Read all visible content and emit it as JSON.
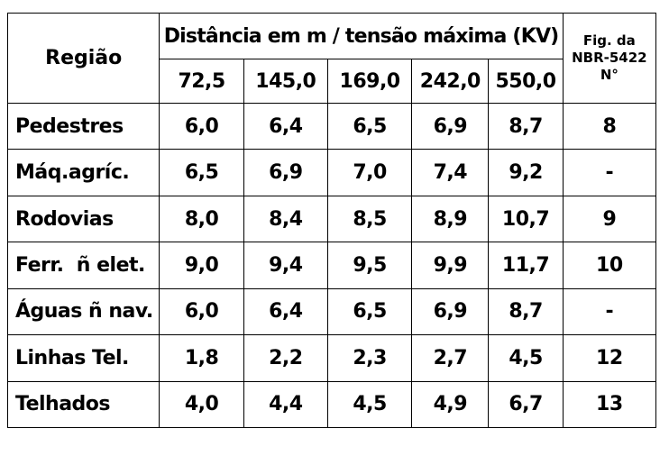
{
  "table": {
    "region_header": "Região",
    "span_header": "Distância em m / tensão máxima (KV)",
    "fig_header": [
      "Fig. da",
      "NBR-5422",
      "N°"
    ],
    "voltages": [
      "72,5",
      "145,0",
      "169,0",
      "242,0",
      "550,0"
    ],
    "rows": [
      {
        "label": "Pedestres",
        "values": [
          "6,0",
          "6,4",
          "6,5",
          "6,9",
          "8,7"
        ],
        "fig": "8"
      },
      {
        "label": "Máq.agríc.",
        "values": [
          "6,5",
          "6,9",
          "7,0",
          "7,4",
          "9,2"
        ],
        "fig": "-"
      },
      {
        "label": "Rodovias",
        "values": [
          "8,0",
          "8,4",
          "8,5",
          "8,9",
          "10,7"
        ],
        "fig": "9"
      },
      {
        "label": "Ferr.  ñ elet.",
        "values": [
          "9,0",
          "9,4",
          "9,5",
          "9,9",
          "11,7"
        ],
        "fig": "10"
      },
      {
        "label": "Águas ñ nav.",
        "values": [
          "6,0",
          "6,4",
          "6,5",
          "6,9",
          "8,7"
        ],
        "fig": "-"
      },
      {
        "label": "Linhas Tel.",
        "values": [
          "1,8",
          "2,2",
          "2,3",
          "2,7",
          "4,5"
        ],
        "fig": "12"
      },
      {
        "label": "Telhados",
        "values": [
          "4,0",
          "4,4",
          "4,5",
          "4,9",
          "6,7"
        ],
        "fig": "13"
      }
    ]
  }
}
